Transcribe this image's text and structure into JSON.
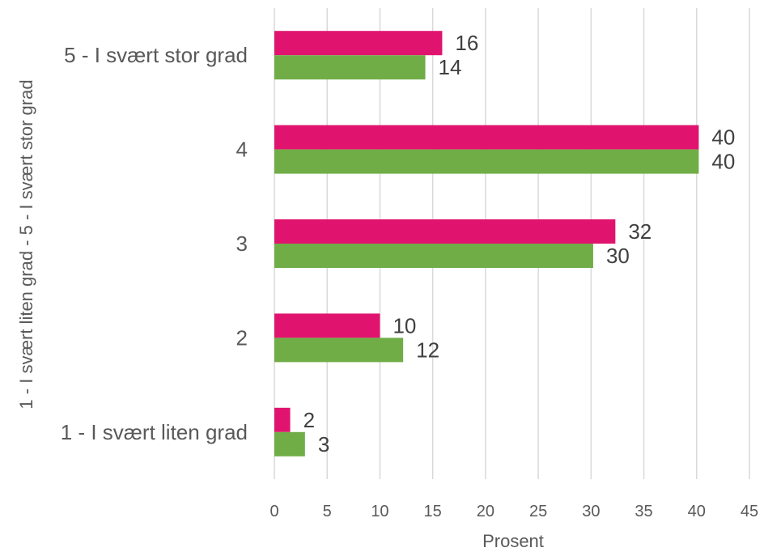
{
  "chart_data": {
    "type": "bar",
    "orientation": "horizontal",
    "categories": [
      "1 - I svært liten grad",
      "2",
      "3",
      "4",
      "5 - I svært stor grad"
    ],
    "series": [
      {
        "color": "#e0146e",
        "values": [
          1.5,
          10,
          32.3,
          40.2,
          15.9
        ],
        "labels": [
          "2",
          "10",
          "32",
          "40",
          "16"
        ]
      },
      {
        "color": "#70ad47",
        "values": [
          2.9,
          12.2,
          30.2,
          40.2,
          14.3
        ],
        "labels": [
          "3",
          "12",
          "30",
          "40",
          "14"
        ]
      }
    ],
    "xlabel": "Prosent",
    "ylabel": "1 - I svært liten grad - 5 - I svært stor grad",
    "xlim": [
      0,
      45
    ],
    "xticks": [
      0,
      5,
      10,
      15,
      20,
      25,
      30,
      35,
      40,
      45
    ],
    "grid": true
  }
}
